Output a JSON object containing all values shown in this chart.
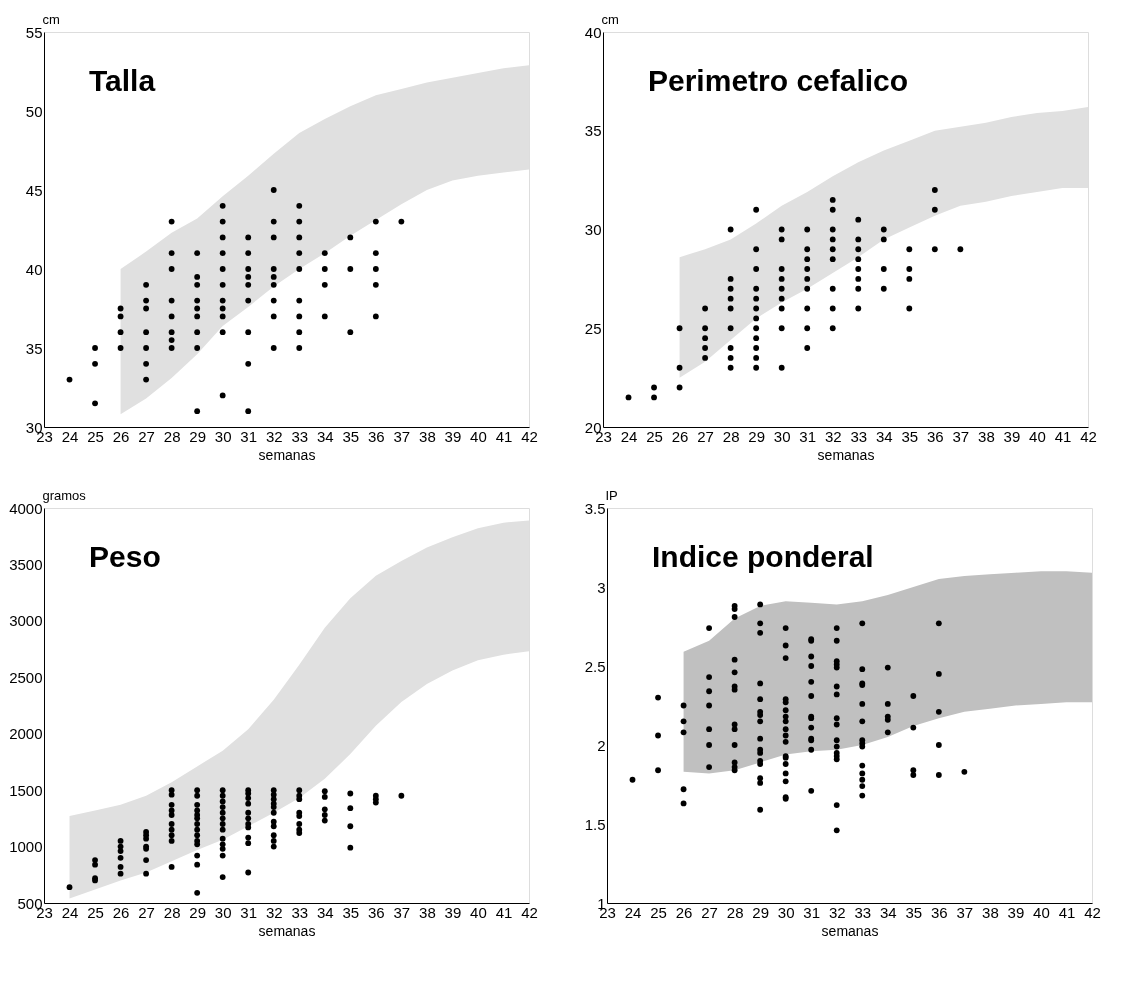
{
  "chart_data": [
    {
      "type": "scatter",
      "title": "Talla",
      "ylabel": "cm",
      "xlabel": "semanas",
      "xlim": [
        23,
        42
      ],
      "xticks": [
        23,
        24,
        25,
        26,
        27,
        28,
        29,
        30,
        31,
        32,
        33,
        34,
        35,
        36,
        37,
        38,
        39,
        40,
        41,
        42
      ],
      "ylim": [
        30,
        55
      ],
      "yticks": [
        30,
        35,
        40,
        45,
        50,
        55
      ],
      "grid": false,
      "series": [
        {
          "type": "area",
          "color": "#e0e0e0",
          "x": [
            26,
            27,
            28,
            29,
            30,
            31,
            32,
            33,
            34,
            35,
            36,
            37,
            38,
            39,
            40,
            41,
            42
          ],
          "values": [
            null,
            null,
            null,
            null,
            null,
            null,
            null,
            null,
            null,
            null,
            null,
            null,
            null,
            null,
            null,
            null,
            null
          ],
          "lower": [
            30.8,
            31.8,
            33.1,
            34.6,
            36.4,
            37.6,
            38.9,
            40,
            41,
            42.1,
            43.1,
            44.1,
            45,
            45.6,
            45.9,
            46.1,
            46.3
          ],
          "upper": [
            40,
            41.1,
            42.3,
            43.2,
            44.6,
            45.9,
            47.3,
            48.6,
            49.5,
            50.3,
            51,
            51.4,
            51.8,
            52.1,
            52.4,
            52.7,
            52.9
          ]
        },
        {
          "type": "scatter",
          "marker": "circle",
          "color": "#000000",
          "x": [
            24,
            25,
            25,
            25,
            26,
            26,
            26,
            26,
            27,
            27,
            27,
            27,
            27,
            27,
            27,
            28,
            28,
            28,
            28,
            28,
            28,
            28,
            28,
            29,
            29,
            29,
            29,
            29,
            29,
            29,
            29,
            29,
            30,
            30,
            30,
            30,
            30,
            30,
            30,
            30,
            30,
            30,
            30,
            31,
            31,
            31,
            31,
            31,
            31,
            31,
            31,
            31,
            32,
            32,
            32,
            32,
            32,
            32,
            32,
            32,
            32,
            33,
            33,
            33,
            33,
            33,
            33,
            33,
            33,
            33,
            34,
            34,
            34,
            34,
            35,
            35,
            35,
            36,
            36,
            36,
            36,
            36,
            37
          ],
          "values": [
            33,
            35,
            34,
            31.5,
            37.5,
            37,
            36,
            35,
            39,
            38,
            37.5,
            36,
            35,
            34,
            33,
            43,
            41,
            40,
            38,
            37,
            36,
            35.5,
            35,
            41,
            39.5,
            39,
            38,
            37.5,
            37,
            36,
            35,
            31,
            44,
            43,
            42,
            41,
            40,
            39,
            38,
            37.5,
            37,
            36,
            32,
            42,
            41,
            40,
            39.5,
            39,
            38,
            36,
            34,
            31,
            45,
            43,
            42,
            40,
            39.5,
            39,
            38,
            37,
            35,
            44,
            43,
            42,
            41,
            40,
            38,
            37,
            36,
            35,
            41,
            40,
            39,
            37,
            42,
            40,
            36,
            43,
            41,
            40,
            39,
            37,
            43
          ]
        }
      ]
    },
    {
      "type": "scatter",
      "title": "Perimetro cefalico",
      "ylabel": "cm",
      "xlabel": "semanas",
      "xlim": [
        23,
        42
      ],
      "xticks": [
        23,
        24,
        25,
        26,
        27,
        28,
        29,
        30,
        31,
        32,
        33,
        34,
        35,
        36,
        37,
        38,
        39,
        40,
        41,
        42
      ],
      "ylim": [
        20,
        40
      ],
      "yticks": [
        20,
        25,
        30,
        35,
        40
      ],
      "grid": false,
      "series": [
        {
          "type": "area",
          "color": "#e0e0e0",
          "x": [
            26,
            27,
            28,
            29,
            30,
            31,
            32,
            33,
            34,
            35,
            36,
            37,
            38,
            39,
            40,
            41,
            42
          ],
          "values": [
            null,
            null,
            null,
            null,
            null,
            null,
            null,
            null,
            null,
            null,
            null,
            null,
            null,
            null,
            null,
            null,
            null
          ],
          "lower": [
            22.5,
            23.3,
            24.4,
            25.5,
            26.3,
            27,
            27.8,
            28.6,
            29.5,
            30.1,
            30.7,
            31.2,
            31.4,
            31.7,
            31.9,
            32.1,
            32.1
          ],
          "upper": [
            28.6,
            29,
            29.5,
            30.3,
            31.2,
            31.9,
            32.7,
            33.4,
            34,
            34.5,
            35,
            35.2,
            35.4,
            35.7,
            35.9,
            36,
            36.2
          ]
        },
        {
          "type": "scatter",
          "marker": "circle",
          "color": "#000000",
          "x": [
            24,
            25,
            25,
            26,
            26,
            26,
            27,
            27,
            27,
            27,
            27,
            28,
            28,
            28,
            28,
            28,
            28,
            28,
            28,
            28,
            29,
            29,
            29,
            29,
            29,
            29,
            29,
            29,
            29,
            29,
            29,
            29,
            30,
            30,
            30,
            30,
            30,
            30,
            30,
            30,
            30,
            31,
            31,
            31,
            31,
            31,
            31,
            31,
            31,
            31,
            32,
            32,
            32,
            32,
            32,
            32,
            32,
            32,
            32,
            33,
            33,
            33,
            33,
            33,
            33,
            33,
            33,
            34,
            34,
            34,
            34,
            35,
            35,
            35,
            35,
            36,
            36,
            36,
            37
          ],
          "values": [
            21.5,
            22,
            21.5,
            25,
            23,
            22,
            26,
            25,
            24.5,
            24,
            23.5,
            30,
            27.5,
            27,
            26.5,
            26,
            25,
            24,
            23.5,
            23,
            31,
            29,
            28,
            27,
            26.5,
            26,
            25.5,
            25,
            24.5,
            24,
            23.5,
            23,
            30,
            29.5,
            28,
            27.5,
            27,
            26.5,
            26,
            25,
            23,
            30,
            29,
            28.5,
            28,
            27.5,
            27,
            26,
            25,
            24,
            31.5,
            31,
            30,
            29.5,
            29,
            28.5,
            27,
            26,
            25,
            30.5,
            29.5,
            29,
            28.5,
            28,
            27.5,
            27,
            26,
            30,
            29.5,
            28,
            27,
            29,
            28,
            27.5,
            26,
            32,
            31,
            29,
            29
          ]
        }
      ]
    },
    {
      "type": "scatter",
      "title": "Peso",
      "ylabel": "gramos",
      "xlabel": "semanas",
      "xlim": [
        23,
        42
      ],
      "xticks": [
        23,
        24,
        25,
        26,
        27,
        28,
        29,
        30,
        31,
        32,
        33,
        34,
        35,
        36,
        37,
        38,
        39,
        40,
        41,
        42
      ],
      "ylim": [
        500,
        4000
      ],
      "yticks": [
        500,
        1000,
        1500,
        2000,
        2500,
        3000,
        3500,
        4000
      ],
      "grid": false,
      "series": [
        {
          "type": "area",
          "color": "#e0e0e0",
          "x": [
            24,
            25,
            26,
            27,
            28,
            29,
            30,
            31,
            32,
            33,
            34,
            35,
            36,
            37,
            38,
            39,
            40,
            41,
            42
          ],
          "values": [
            null,
            null,
            null,
            null,
            null,
            null,
            null,
            null,
            null,
            null,
            null,
            null,
            null,
            null,
            null,
            null,
            null,
            null,
            null
          ],
          "lower": [
            540,
            620,
            700,
            770,
            870,
            970,
            1060,
            1180,
            1300,
            1430,
            1600,
            1820,
            2070,
            2280,
            2440,
            2560,
            2650,
            2700,
            2730
          ],
          "upper": [
            1270,
            1320,
            1370,
            1450,
            1570,
            1710,
            1850,
            2040,
            2300,
            2610,
            2940,
            3200,
            3400,
            3530,
            3650,
            3740,
            3820,
            3870,
            3890
          ]
        },
        {
          "type": "scatter",
          "marker": "circle",
          "color": "#000000",
          "x": [
            24,
            25,
            25,
            25,
            25,
            26,
            26,
            26,
            26,
            26,
            26,
            27,
            27,
            27,
            27,
            27,
            27,
            27,
            28,
            28,
            28,
            28,
            28,
            28,
            28,
            28,
            28,
            28,
            29,
            29,
            29,
            29,
            29,
            29,
            29,
            29,
            29,
            29,
            29,
            29,
            29,
            29,
            30,
            30,
            30,
            30,
            30,
            30,
            30,
            30,
            30,
            30,
            30,
            30,
            30,
            31,
            31,
            31,
            31,
            31,
            31,
            31,
            31,
            31,
            31,
            31,
            32,
            32,
            32,
            32,
            32,
            32,
            32,
            32,
            32,
            32,
            32,
            33,
            33,
            33,
            33,
            33,
            33,
            33,
            33,
            34,
            34,
            34,
            34,
            34,
            35,
            35,
            35,
            35,
            36,
            36,
            36,
            37
          ],
          "values": [
            640,
            880,
            840,
            720,
            700,
            1050,
            1000,
            960,
            900,
            820,
            760,
            1130,
            1100,
            1070,
            1000,
            980,
            880,
            760,
            1500,
            1460,
            1370,
            1320,
            1280,
            1200,
            1150,
            1100,
            1050,
            820,
            1500,
            1450,
            1370,
            1320,
            1280,
            1250,
            1200,
            1150,
            1100,
            1050,
            1020,
            920,
            840,
            590,
            1500,
            1450,
            1400,
            1350,
            1300,
            1250,
            1200,
            1150,
            1070,
            1020,
            980,
            920,
            730,
            1500,
            1470,
            1430,
            1380,
            1300,
            1250,
            1200,
            1170,
            1080,
            1030,
            770,
            1500,
            1460,
            1420,
            1380,
            1350,
            1300,
            1220,
            1180,
            1100,
            1050,
            1000,
            1500,
            1450,
            1420,
            1300,
            1270,
            1200,
            1150,
            1120,
            1490,
            1440,
            1330,
            1280,
            1230,
            1470,
            1340,
            1180,
            990,
            1450,
            1420,
            1390,
            1450
          ]
        }
      ]
    },
    {
      "type": "scatter",
      "title": "Indice ponderal",
      "ylabel": "IP",
      "xlabel": "semanas",
      "xlim": [
        23,
        42
      ],
      "xticks": [
        23,
        24,
        25,
        26,
        27,
        28,
        29,
        30,
        31,
        32,
        33,
        34,
        35,
        36,
        37,
        38,
        39,
        40,
        41,
        42
      ],
      "ylim": [
        1,
        3.5
      ],
      "yticks": [
        1,
        1.5,
        2,
        2.5,
        3,
        3.5
      ],
      "grid": false,
      "series": [
        {
          "type": "area",
          "color": "#c0c0c0",
          "x": [
            26,
            27,
            28,
            29,
            30,
            31,
            32,
            33,
            34,
            35,
            36,
            37,
            38,
            39,
            40,
            41,
            42
          ],
          "values": [
            null,
            null,
            null,
            null,
            null,
            null,
            null,
            null,
            null,
            null,
            null,
            null,
            null,
            null,
            null,
            null,
            null
          ],
          "lower": [
            1.83,
            1.82,
            1.84,
            1.89,
            1.94,
            1.96,
            1.97,
            2.0,
            2.05,
            2.12,
            2.17,
            2.21,
            2.23,
            2.25,
            2.26,
            2.27,
            2.27
          ],
          "upper": [
            2.59,
            2.66,
            2.8,
            2.88,
            2.91,
            2.9,
            2.89,
            2.91,
            2.95,
            3.0,
            3.05,
            3.07,
            3.08,
            3.09,
            3.1,
            3.1,
            3.09
          ]
        },
        {
          "type": "scatter",
          "marker": "circle",
          "color": "#000000",
          "x": [
            24,
            25,
            25,
            25,
            26,
            26,
            26,
            26,
            26,
            27,
            27,
            27,
            27,
            27,
            27,
            27,
            28,
            28,
            28,
            28,
            28,
            28,
            28,
            28,
            28,
            28,
            28,
            28,
            28,
            29,
            29,
            29,
            29,
            29,
            29,
            29,
            29,
            29,
            29,
            29,
            29,
            29,
            29,
            29,
            29,
            30,
            30,
            30,
            30,
            30,
            30,
            30,
            30,
            30,
            30,
            30,
            30,
            30,
            30,
            30,
            30,
            30,
            30,
            31,
            31,
            31,
            31,
            31,
            31,
            31,
            31,
            31,
            31,
            31,
            31,
            31,
            32,
            32,
            32,
            32,
            32,
            32,
            32,
            32,
            32,
            32,
            32,
            32,
            32,
            32,
            32,
            32,
            33,
            33,
            33,
            33,
            33,
            33,
            33,
            33,
            33,
            33,
            33,
            33,
            33,
            33,
            34,
            34,
            34,
            34,
            34,
            35,
            35,
            35,
            35,
            36,
            36,
            36,
            36,
            36,
            37
          ],
          "values": [
            1.78,
            2.3,
            2.06,
            1.84,
            2.25,
            2.15,
            2.08,
            1.72,
            1.63,
            2.74,
            2.43,
            2.34,
            2.25,
            2.1,
            2.0,
            1.86,
            2.88,
            2.86,
            2.81,
            2.54,
            2.46,
            2.37,
            2.35,
            2.13,
            2.1,
            2.0,
            1.89,
            1.86,
            1.84,
            2.89,
            2.77,
            2.71,
            2.39,
            2.29,
            2.21,
            2.19,
            2.15,
            2.04,
            1.97,
            1.95,
            1.9,
            1.88,
            1.79,
            1.76,
            1.59,
            2.74,
            2.63,
            2.55,
            2.29,
            2.27,
            2.22,
            2.18,
            2.15,
            2.1,
            2.06,
            2.02,
            1.93,
            1.92,
            1.88,
            1.82,
            1.77,
            1.67,
            1.66,
            2.67,
            2.66,
            2.56,
            2.5,
            2.4,
            2.31,
            2.18,
            2.17,
            2.11,
            2.04,
            2.03,
            1.97,
            1.71,
            2.74,
            2.66,
            2.53,
            2.51,
            2.49,
            2.37,
            2.32,
            2.17,
            2.13,
            2.03,
            1.99,
            1.95,
            1.93,
            1.91,
            1.62,
            1.46,
            2.77,
            2.48,
            2.39,
            2.38,
            2.26,
            2.15,
            2.03,
            2.01,
            1.99,
            1.87,
            1.82,
            1.78,
            1.74,
            1.68,
            2.49,
            2.26,
            2.18,
            2.16,
            2.08,
            2.31,
            2.11,
            1.84,
            1.81,
            2.77,
            2.45,
            2.21,
            2.0,
            1.81,
            1.83
          ]
        }
      ]
    }
  ]
}
